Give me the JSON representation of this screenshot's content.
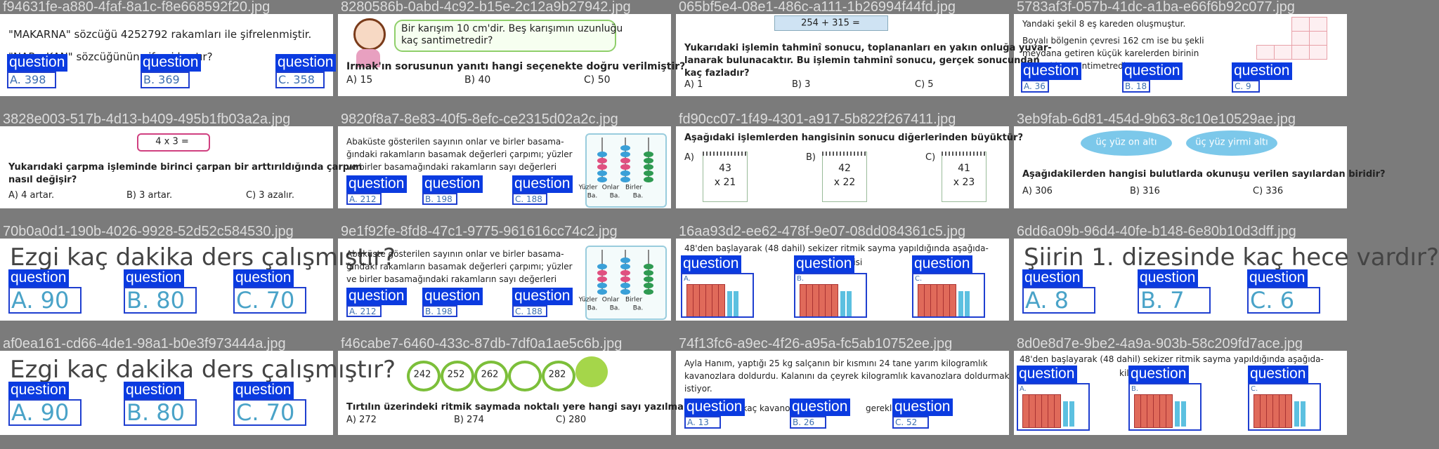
{
  "tiles": [
    {
      "filename": "f94631fe-a880-4faf-8a1c-f8e668592f20.jpg",
      "lines": [
        "\"MAKARNA\" sözcüğü 4252792 rakamları ile şifrelenmiştir.",
        "\"NAR - KAN\" sözcüğünün şifresi kaçtır?"
      ],
      "options": [
        "A. 398",
        "B. 369",
        "C. 358"
      ],
      "boxes": [
        "question",
        "question",
        "question"
      ]
    },
    {
      "filename": "8280586b-0abd-4c92-b15e-2c12a9b27942.jpg",
      "lines": [
        "Bir karışım 10 cm'dir. Beş karışımın uzunluğu",
        "kaç santimetredir?",
        "Irmak'ın sorusunun yanıtı hangi seçenekte doğru verilmiştir?"
      ],
      "options": [
        "A) 15",
        "B) 40",
        "C) 50"
      ]
    },
    {
      "filename": "065bf5e4-08e1-486c-a111-1b26994f44fd.jpg",
      "figure": [
        "254 + 315 ="
      ],
      "lines": [
        "Yukarıdaki işlemin tahminî sonucu, toplananları en yakın onluğa yuvar-",
        "lanarak bulunacaktır. Bu işlemin tahminî sonucu, gerçek sonucundan",
        "kaç fazladır?"
      ],
      "options": [
        "A) 1",
        "B) 3",
        "C) 5"
      ]
    },
    {
      "filename": "5783af3f-057b-41dc-a1ba-e66f6b92c077.jpg",
      "lines": [
        "Yandaki şekil 8 eş kareden oluşmuştur.",
        "Boyalı bölgenin çevresi 162 cm ise bu şekli",
        "meydana getiren küçük karelerden birinin",
        "çevresi kaç santimetredir?"
      ],
      "options": [
        "A. 36",
        "B. 18",
        "C. 9"
      ],
      "boxes": [
        "question",
        "question",
        "question"
      ]
    },
    {
      "filename": "3828e003-517b-4d13-b409-495b1fb03a2a.jpg",
      "figure": [
        "4 x 3 ="
      ],
      "lines": [
        "Yukarıdaki çarpma işleminde birinci çarpan bir arttırıldığında çarpım",
        "nasıl değişir?"
      ],
      "options": [
        "A) 4 artar.",
        "B) 3 artar.",
        "C) 3 azalır."
      ]
    },
    {
      "filename": "9820f8a7-8e83-40f5-8efc-ce2315d02a2c.jpg",
      "lines": [
        "Abaküste gösterilen sayının onlar ve birler basama-",
        "ğındaki rakamların basamak değerleri çarpımı; yüzler",
        "ve birler basamağındaki rakamların sayı değerleri"
      ],
      "figure": [
        "Yüzler",
        "Onlar",
        "Birler",
        "Ba.",
        "Ba.",
        "Ba."
      ],
      "options": [
        "A. 212",
        "B. 198",
        "C. 188"
      ],
      "boxes": [
        "question",
        "question",
        "question"
      ]
    },
    {
      "filename": "fd90cc07-1f49-4301-a917-5b822f267411.jpg",
      "lines": [
        "Aşağıdaki işlemlerden hangisinin sonucu diğerlerinden büyüktür?"
      ],
      "options": [
        "A)",
        "B)",
        "C)"
      ],
      "figure": [
        "43",
        "x 21",
        "42",
        "x 22",
        "41",
        "x 23"
      ]
    },
    {
      "filename": "3eb9fab-6d81-454d-9b63-8c10e10529ae.jpg",
      "figure": [
        "üç yüz on altı",
        "üç yüz yirmi altı"
      ],
      "lines": [
        "Aşağıdakilerden hangisi bulutlarda okunuşu verilen sayılardan biridir?"
      ],
      "options": [
        "A) 306",
        "B) 316",
        "C) 336"
      ]
    },
    {
      "filename": "70b0a0d1-190b-4026-9928-52d52c584530.jpg",
      "lines": [
        "Ezgi kaç dakika ders çalışmıştır?"
      ],
      "options": [
        "A. 90",
        "B. 80",
        "C. 70"
      ],
      "boxes": [
        "question",
        "question",
        "question"
      ]
    },
    {
      "filename": "9e1f92fe-8fd8-47c1-9775-961616cc74c2.jpg",
      "lines": [
        "Abaküste gösterilen sayının onlar ve birler basama-",
        "ğındaki rakamların basamak değerleri çarpımı; yüzler",
        "ve birler basamağındaki rakamların sayı değerleri"
      ],
      "figure": [
        "Yüzler",
        "Onlar",
        "Birler",
        "Ba.",
        "Ba.",
        "Ba."
      ],
      "options": [
        "A. 212",
        "B. 198",
        "C. 188"
      ],
      "boxes": [
        "question",
        "question",
        "question"
      ]
    },
    {
      "filename": "16aa93d2-ee62-478f-9e07-08dd084361c5.jpg",
      "lines": [
        "48'den başlayarak (48 dahil) sekizer ritmik sayma yapıldığında aşağıda-",
        "kilerden hangisi"
      ],
      "options": [
        "A.",
        "B.",
        "C."
      ],
      "boxes": [
        "question",
        "question",
        "question"
      ]
    },
    {
      "filename": "6dd6a09b-96d4-40fe-b148-6e80b10d3dff.jpg",
      "lines": [
        "Şiirin 1. dizesinde kaç hece vardır?"
      ],
      "options": [
        "A. 8",
        "B. 7",
        "C. 6"
      ],
      "boxes": [
        "question",
        "question",
        "question"
      ]
    },
    {
      "filename": "af0ea161-cd66-4de1-98a1-b0e3f973444a.jpg",
      "lines": [
        "Ezgi kaç dakika ders çalışmıştır?"
      ],
      "options": [
        "A. 90",
        "B. 80",
        "C. 70"
      ],
      "boxes": [
        "question",
        "question",
        "question"
      ]
    },
    {
      "filename": "f46cabe7-6460-433c-87db-7df0a1ae5c6b.jpg",
      "figure": [
        "242",
        "252",
        "262",
        "282"
      ],
      "lines": [
        "Tırtılın üzerindeki ritmik saymada noktalı yere hangi sayı yazılmalıdır?"
      ],
      "options": [
        "A) 272",
        "B) 274",
        "C) 280"
      ]
    },
    {
      "filename": "74f13fc6-a9ec-4f26-a95a-fc5ab10752ee.jpg",
      "lines": [
        "Ayla Hanım, yaptığı 25 kg salçanın bir kısmını 24 tane yarım kilogramlık",
        "kavanozlara doldurdu. Kalanını da çeyrek kilogramlık kavanozlara doldurmak",
        "istiyor.",
        "Ayla Hanım'a kaç kavanoz daha",
        "gereklidir?"
      ],
      "options": [
        "A. 13",
        "B. 26",
        "C. 52"
      ],
      "boxes": [
        "question",
        "question",
        "question"
      ]
    },
    {
      "filename": "8d0e8d7e-9be2-4a9a-903b-58c209fd7ace.jpg",
      "lines": [
        "48'den başlayarak (48 dahil) sekizer ritmik sayma yapıldığında aşağıda-",
        "kilerden hangisi"
      ],
      "options": [
        "A.",
        "B.",
        "C."
      ],
      "boxes": [
        "question",
        "question",
        "question"
      ]
    }
  ]
}
